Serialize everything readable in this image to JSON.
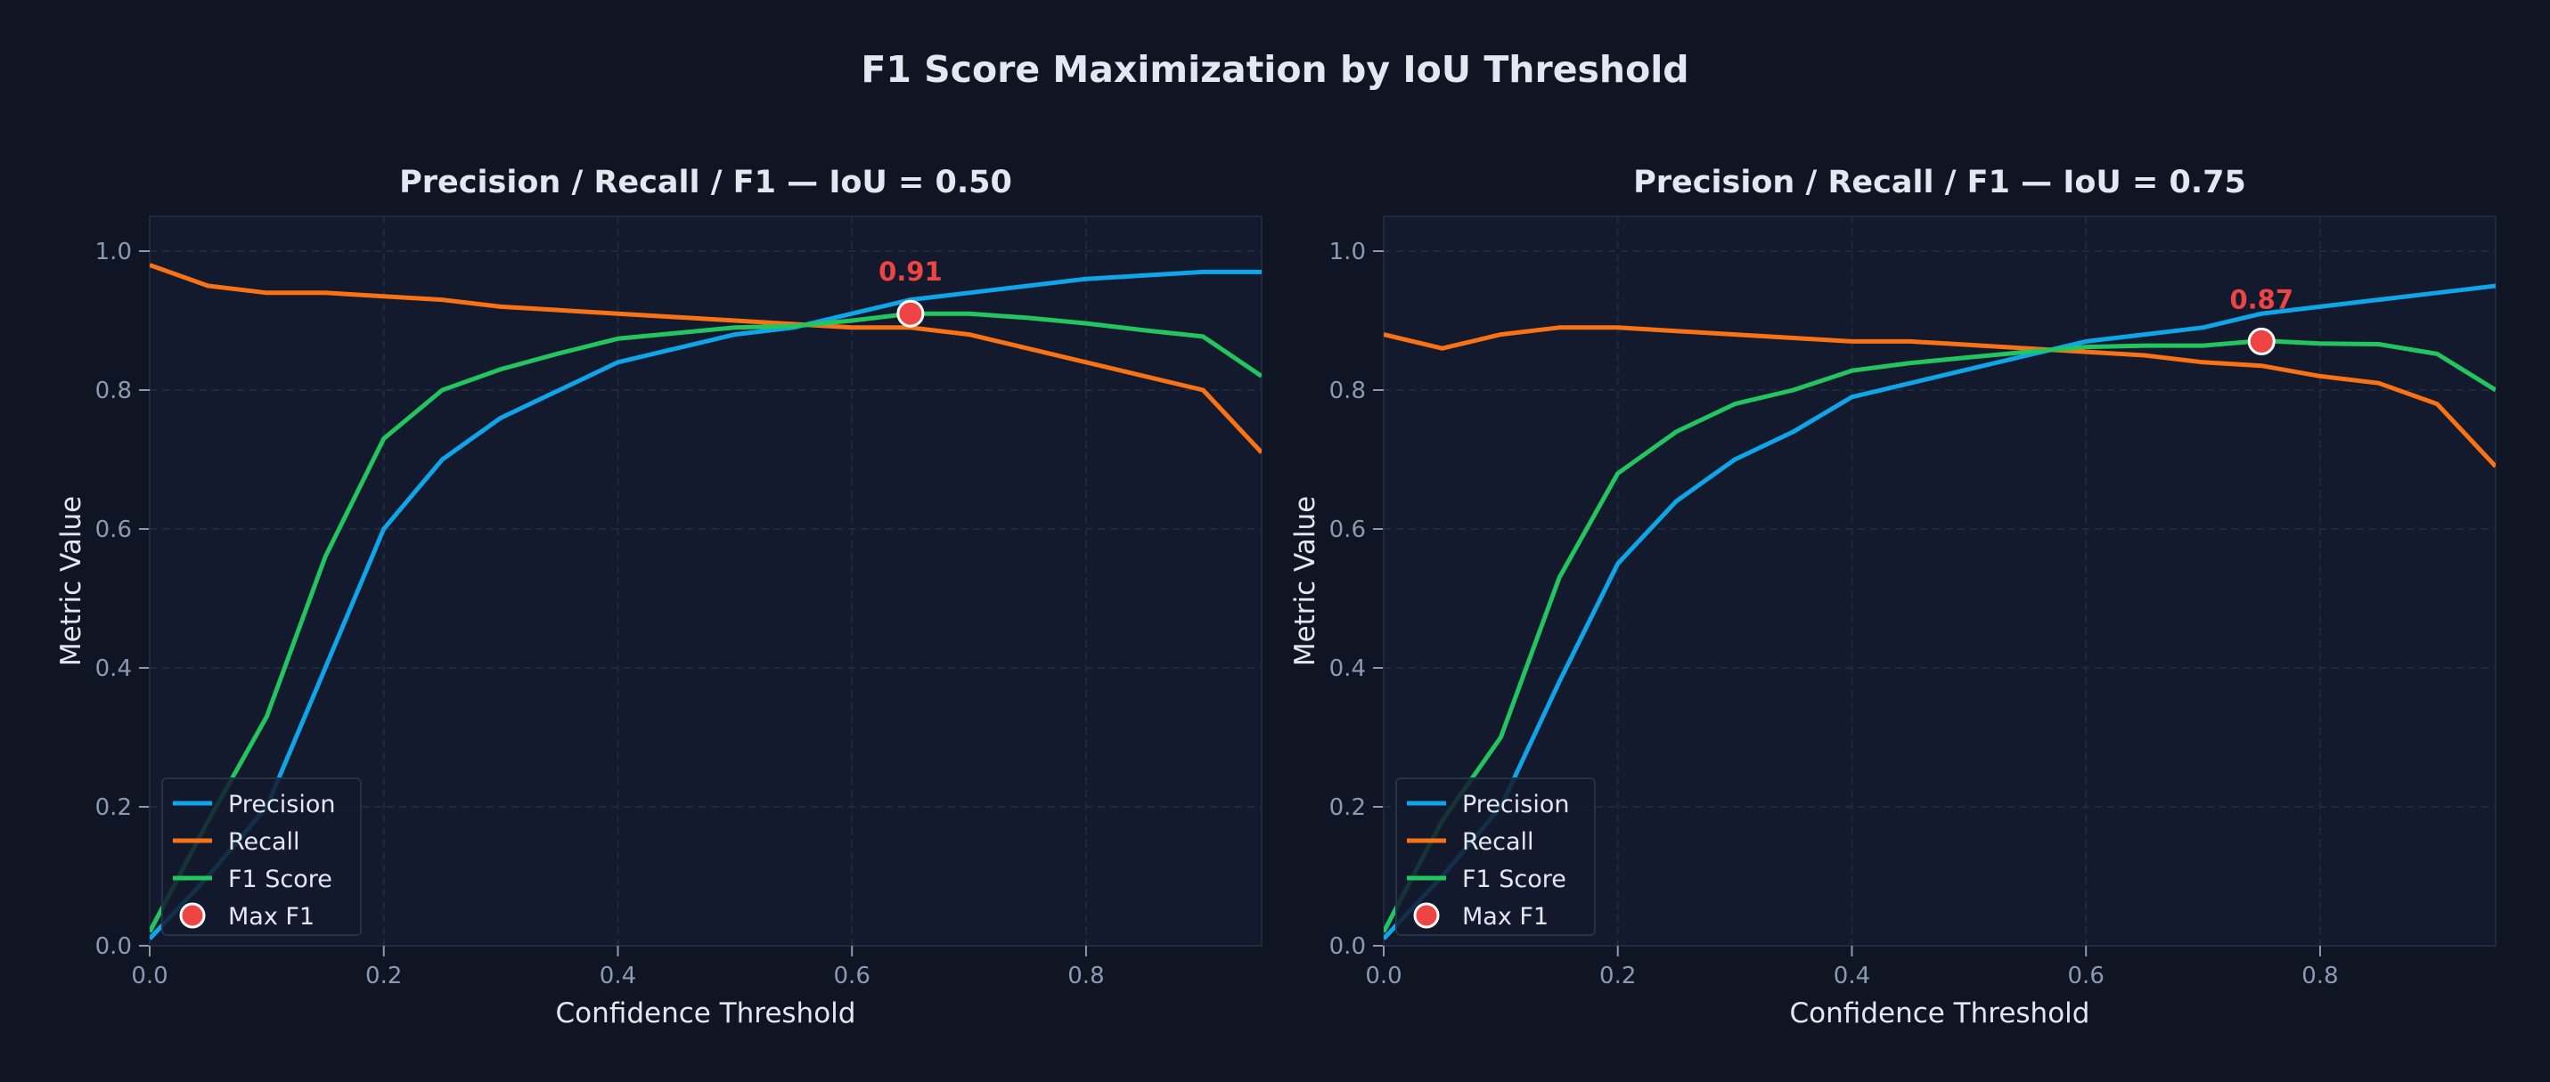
{
  "figure_title": "F1 Score Maximization by IoU Threshold",
  "colors": {
    "background": "#0f1523",
    "axes_background": "#131a2d",
    "precision": "#0ea5e9",
    "recall": "#f97316",
    "f1": "#22c55e",
    "max_marker": "#ef4444",
    "text": "#e2e8f0",
    "tick": "#8a9ab5"
  },
  "chart_data": [
    {
      "type": "line",
      "title": "Precision / Recall / F1  —  IoU = 0.50",
      "xlabel": "Confidence Threshold",
      "ylabel": "Metric Value",
      "xlim": [
        0,
        0.95
      ],
      "ylim": [
        0,
        1.05
      ],
      "xticks": [
        "0.0",
        "0.2",
        "0.4",
        "0.6",
        "0.8"
      ],
      "yticks": [
        "0.0",
        "0.2",
        "0.4",
        "0.6",
        "0.8",
        "1.0"
      ],
      "grid": true,
      "legend_position": "lower-left",
      "x": [
        0,
        0.05,
        0.1,
        0.15,
        0.2,
        0.25,
        0.3,
        0.35,
        0.4,
        0.45,
        0.5,
        0.55,
        0.6,
        0.65,
        0.7,
        0.75,
        0.8,
        0.85,
        0.9,
        0.95
      ],
      "series": [
        {
          "name": "Precision",
          "values": [
            0.01,
            0.1,
            0.2,
            0.4,
            0.6,
            0.7,
            0.76,
            0.8,
            0.84,
            0.86,
            0.88,
            0.89,
            0.91,
            0.93,
            0.94,
            0.95,
            0.96,
            0.965,
            0.97,
            0.97
          ]
        },
        {
          "name": "Recall",
          "values": [
            0.98,
            0.95,
            0.94,
            0.94,
            0.935,
            0.93,
            0.92,
            0.915,
            0.91,
            0.905,
            0.9,
            0.895,
            0.89,
            0.89,
            0.88,
            0.86,
            0.84,
            0.82,
            0.8,
            0.71
          ]
        },
        {
          "name": "F1 Score",
          "values": [
            0.02,
            0.18,
            0.33,
            0.56,
            0.73,
            0.8,
            0.83,
            0.853,
            0.874,
            0.882,
            0.89,
            0.892,
            0.9,
            0.91,
            0.91,
            0.904,
            0.896,
            0.886,
            0.877,
            0.82
          ]
        }
      ],
      "max_f1": {
        "name": "Max F1",
        "x": 0.65,
        "y": 0.91,
        "label": "0.91"
      }
    },
    {
      "type": "line",
      "title": "Precision / Recall / F1  —  IoU = 0.75",
      "xlabel": "Confidence Threshold",
      "ylabel": "Metric Value",
      "xlim": [
        0,
        0.95
      ],
      "ylim": [
        0,
        1.05
      ],
      "xticks": [
        "0.0",
        "0.2",
        "0.4",
        "0.6",
        "0.8"
      ],
      "yticks": [
        "0.0",
        "0.2",
        "0.4",
        "0.6",
        "0.8",
        "1.0"
      ],
      "grid": true,
      "legend_position": "lower-left",
      "x": [
        0,
        0.05,
        0.1,
        0.15,
        0.2,
        0.25,
        0.3,
        0.35,
        0.4,
        0.45,
        0.5,
        0.55,
        0.6,
        0.65,
        0.7,
        0.75,
        0.8,
        0.85,
        0.9,
        0.95
      ],
      "series": [
        {
          "name": "Precision",
          "values": [
            0.01,
            0.1,
            0.2,
            0.38,
            0.55,
            0.64,
            0.7,
            0.74,
            0.79,
            0.81,
            0.83,
            0.85,
            0.87,
            0.88,
            0.89,
            0.91,
            0.92,
            0.93,
            0.94,
            0.95
          ]
        },
        {
          "name": "Recall",
          "values": [
            0.88,
            0.86,
            0.88,
            0.89,
            0.89,
            0.885,
            0.88,
            0.875,
            0.87,
            0.87,
            0.865,
            0.86,
            0.855,
            0.85,
            0.84,
            0.835,
            0.82,
            0.81,
            0.78,
            0.69
          ]
        },
        {
          "name": "F1 Score",
          "values": [
            0.02,
            0.18,
            0.3,
            0.53,
            0.68,
            0.74,
            0.78,
            0.8,
            0.828,
            0.839,
            0.847,
            0.855,
            0.862,
            0.864,
            0.864,
            0.871,
            0.867,
            0.866,
            0.852,
            0.8
          ]
        }
      ],
      "max_f1": {
        "name": "Max F1",
        "x": 0.75,
        "y": 0.87,
        "label": "0.87"
      }
    }
  ]
}
